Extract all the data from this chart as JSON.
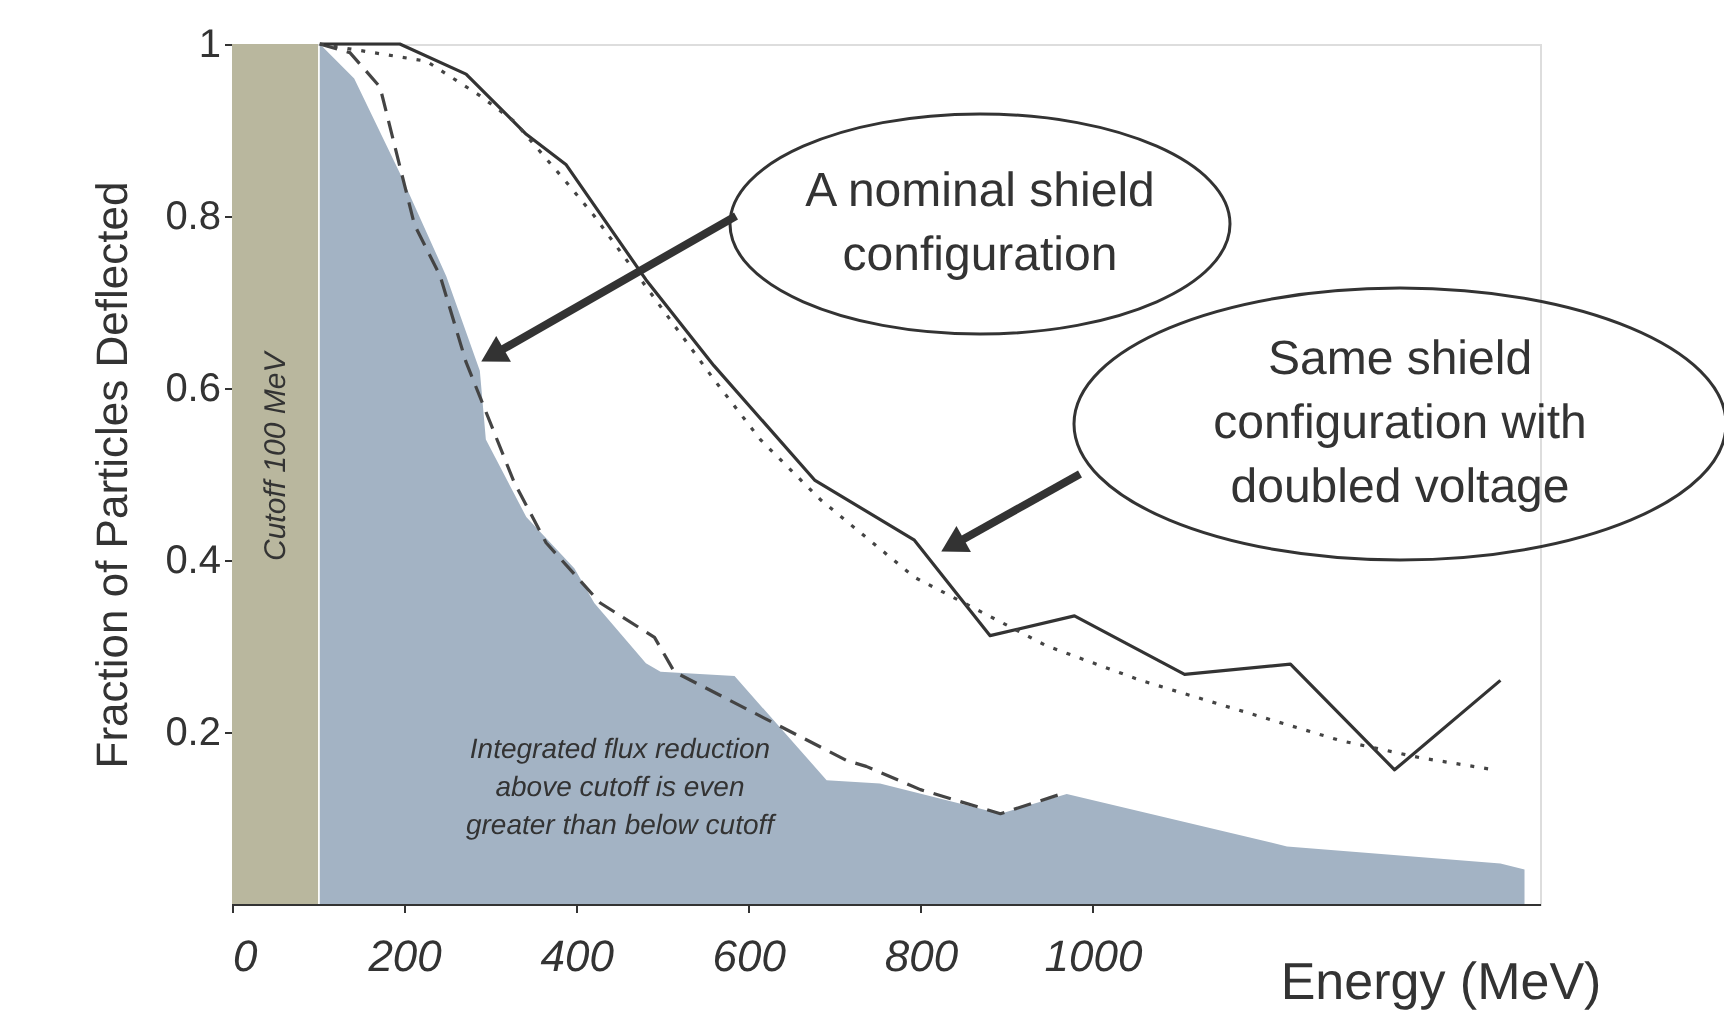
{
  "chart_data": {
    "type": "area",
    "ylabel": "Fraction of Particles Deflected",
    "xlabel": "Energy (MeV)",
    "xlim": [
      0,
      1520
    ],
    "ylim": [
      0,
      1
    ],
    "xticks": [
      0,
      200,
      400,
      600,
      800,
      1000
    ],
    "yticks": [
      0.2,
      0.4,
      0.6,
      0.8,
      1
    ],
    "grid": false,
    "series": [
      {
        "color": "#a3b3c4",
        "x": [
          102,
          142,
          195,
          249,
          288,
          295,
          342,
          398,
          421,
          481,
          498,
          584,
          691,
          753,
          893,
          970,
          1226,
          1474,
          1502
        ],
        "values": [
          1.0,
          0.96,
          0.85,
          0.73,
          0.62,
          0.54,
          0.45,
          0.39,
          0.35,
          0.28,
          0.27,
          0.265,
          0.144,
          0.14,
          0.105,
          0.128,
          0.067,
          0.047,
          0.04
        ]
      },
      {
        "type": "line",
        "color": "#444444",
        "line_style": "dashed",
        "x": [
          102,
          137,
          172,
          212,
          242,
          272,
          328,
          365,
          428,
          491,
          514,
          714,
          737,
          800,
          893,
          970
        ],
        "values": [
          1.0,
          0.99,
          0.95,
          0.79,
          0.73,
          0.63,
          0.49,
          0.42,
          0.35,
          0.31,
          0.27,
          0.167,
          0.16,
          0.133,
          0.105,
          0.13
        ]
      },
      {
        "type": "line",
        "color": "#333333",
        "line_style": "solid",
        "x": [
          102,
          195,
          272,
          342,
          388,
          481,
          560,
          677,
          793,
          881,
          979,
          1107,
          1230,
          1351,
          1474
        ],
        "values": [
          1.0,
          1.0,
          0.965,
          0.895,
          0.86,
          0.726,
          0.626,
          0.493,
          0.423,
          0.312,
          0.335,
          0.267,
          0.279,
          0.156,
          0.26
        ]
      },
      {
        "type": "line",
        "color": "#444444",
        "line_style": "dotted",
        "x": [
          102,
          226,
          288,
          328,
          388,
          421,
          560,
          614,
          684,
          793,
          870,
          947,
          1056,
          1188,
          1288,
          1381,
          1467
        ],
        "values": [
          1.0,
          0.98,
          0.94,
          0.91,
          0.84,
          0.8,
          0.61,
          0.54,
          0.47,
          0.38,
          0.34,
          0.3,
          0.26,
          0.22,
          0.19,
          0.17,
          0.156
        ]
      }
    ],
    "bands": [
      {
        "axis": "x",
        "from": 0,
        "to": 100,
        "label": "Cutoff 100 MeV",
        "color": "#b9b79e"
      }
    ],
    "annotations": [
      "A nominal shield\nconfiguration",
      "Same shield\nconfiguration with\ndoubled voltage",
      "Integrated flux reduction\nabove cutoff is even\ngreater than below cutoff"
    ]
  }
}
